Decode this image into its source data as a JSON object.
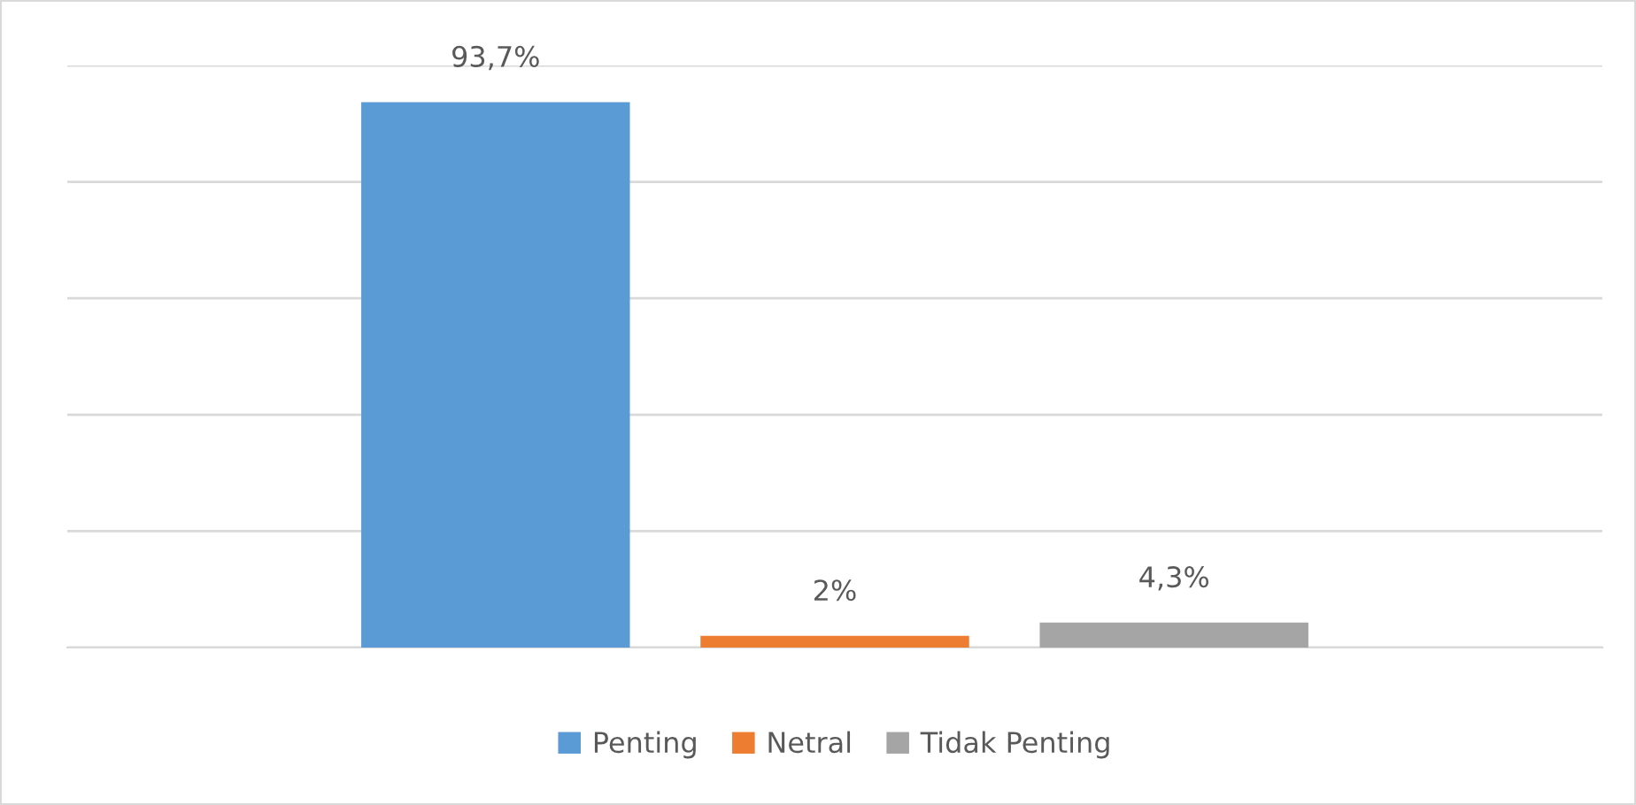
{
  "chart_data": {
    "type": "bar",
    "categories": [
      null
    ],
    "series": [
      {
        "name": "Penting",
        "color": "#5b9bd5",
        "values": [
          93.7
        ],
        "value_labels": [
          "93,7%"
        ]
      },
      {
        "name": "Netral",
        "color": "#ed7d31",
        "values": [
          2
        ],
        "value_labels": [
          "2%"
        ]
      },
      {
        "name": "Tidak Penting",
        "color": "#a5a5a5",
        "values": [
          4.3
        ],
        "value_labels": [
          "4,3%"
        ]
      }
    ],
    "ylim": [
      0,
      100
    ],
    "yticks": [
      {
        "value": 0,
        "label": null
      },
      {
        "value": 20,
        "label": null
      },
      {
        "value": 40,
        "label": null
      },
      {
        "value": 60,
        "label": null
      },
      {
        "value": 80,
        "label": null
      },
      {
        "value": 100,
        "label": null
      }
    ],
    "grid": "y",
    "legend": "bottom"
  }
}
